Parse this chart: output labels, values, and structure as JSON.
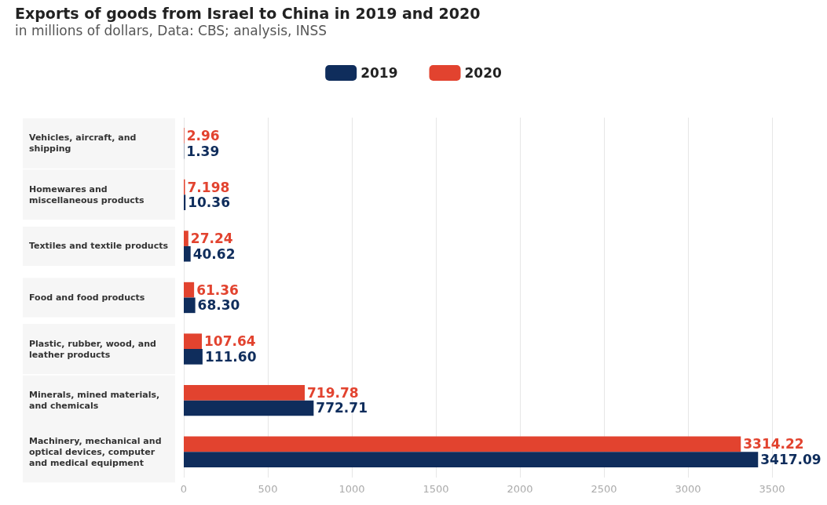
{
  "chart_data": {
    "type": "bar",
    "orientation": "horizontal",
    "title": "Exports of goods from Israel to China in 2019 and 2020",
    "subtitle": "in millions of dollars, Data: CBS; analysis, INSS",
    "categories": [
      "Vehicles, aircraft, and shipping",
      "Homewares and miscellaneous products",
      "Textiles and textile products",
      "Food and food products",
      "Plastic, rubber, wood, and leather products",
      "Minerals, mined materials, and chemicals",
      "Machinery, mechanical and optical devices, computer and medical equipment"
    ],
    "series": [
      {
        "name": "2019",
        "color": "#0f2d5c",
        "values": [
          1.39,
          10.36,
          40.62,
          68.3,
          111.6,
          772.71,
          3417.09
        ],
        "value_labels": [
          "1.39",
          "10.36",
          "40.62",
          "68.30",
          "111.60",
          "772.71",
          "3417.09"
        ]
      },
      {
        "name": "2020",
        "color": "#e2432f",
        "values": [
          2.96,
          7.198,
          27.24,
          61.36,
          107.64,
          719.78,
          3314.22
        ],
        "value_labels": [
          "2.96",
          "7.198",
          "27.24",
          "61.36",
          "107.64",
          "719.78",
          "3314.22"
        ]
      }
    ],
    "xlim": [
      0,
      3500
    ],
    "xticks": [
      0,
      500,
      1000,
      1500,
      2000,
      2500,
      3000,
      3500
    ],
    "grid": "x",
    "legend": "top"
  }
}
